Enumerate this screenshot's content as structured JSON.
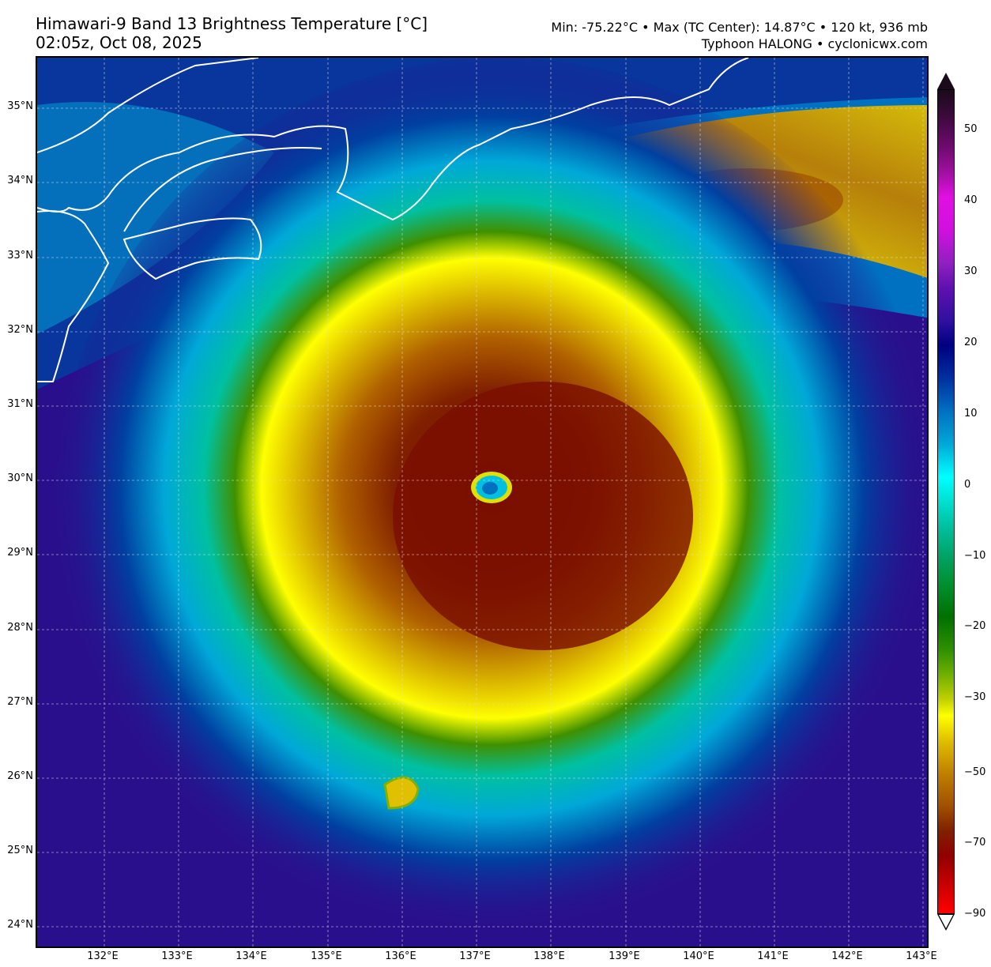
{
  "header": {
    "title": "Himawari-9 Band 13 Brightness Temperature [°C]",
    "time": "02:05z, Oct 08, 2025",
    "stats": "Min: -75.22°C • Max (TC Center): 14.87°C • 120 kt, 936 mb",
    "credit": "Typhoon HALONG • cyclonicwx.com"
  },
  "map": {
    "lat_labels": [
      "35°N",
      "34°N",
      "33°N",
      "32°N",
      "31°N",
      "30°N",
      "29°N",
      "28°N",
      "27°N",
      "26°N",
      "25°N",
      "24°N"
    ],
    "lon_labels": [
      "132°E",
      "133°E",
      "134°E",
      "135°E",
      "136°E",
      "137°E",
      "138°E",
      "139°E",
      "140°E",
      "141°E",
      "142°E",
      "143°E"
    ],
    "storm_name": "HALONG"
  },
  "colorbar": {
    "labels": [
      "50",
      "40",
      "30",
      "20",
      "10",
      "0",
      "−10",
      "−20",
      "−30",
      "−50",
      "−70",
      "−90"
    ],
    "colors": {
      "cold": "#ff0000",
      "very_cold": "#800000",
      "cloud_top": "#ffff00",
      "warm": "#2a0f8c",
      "eye": "#00c0e0"
    }
  }
}
